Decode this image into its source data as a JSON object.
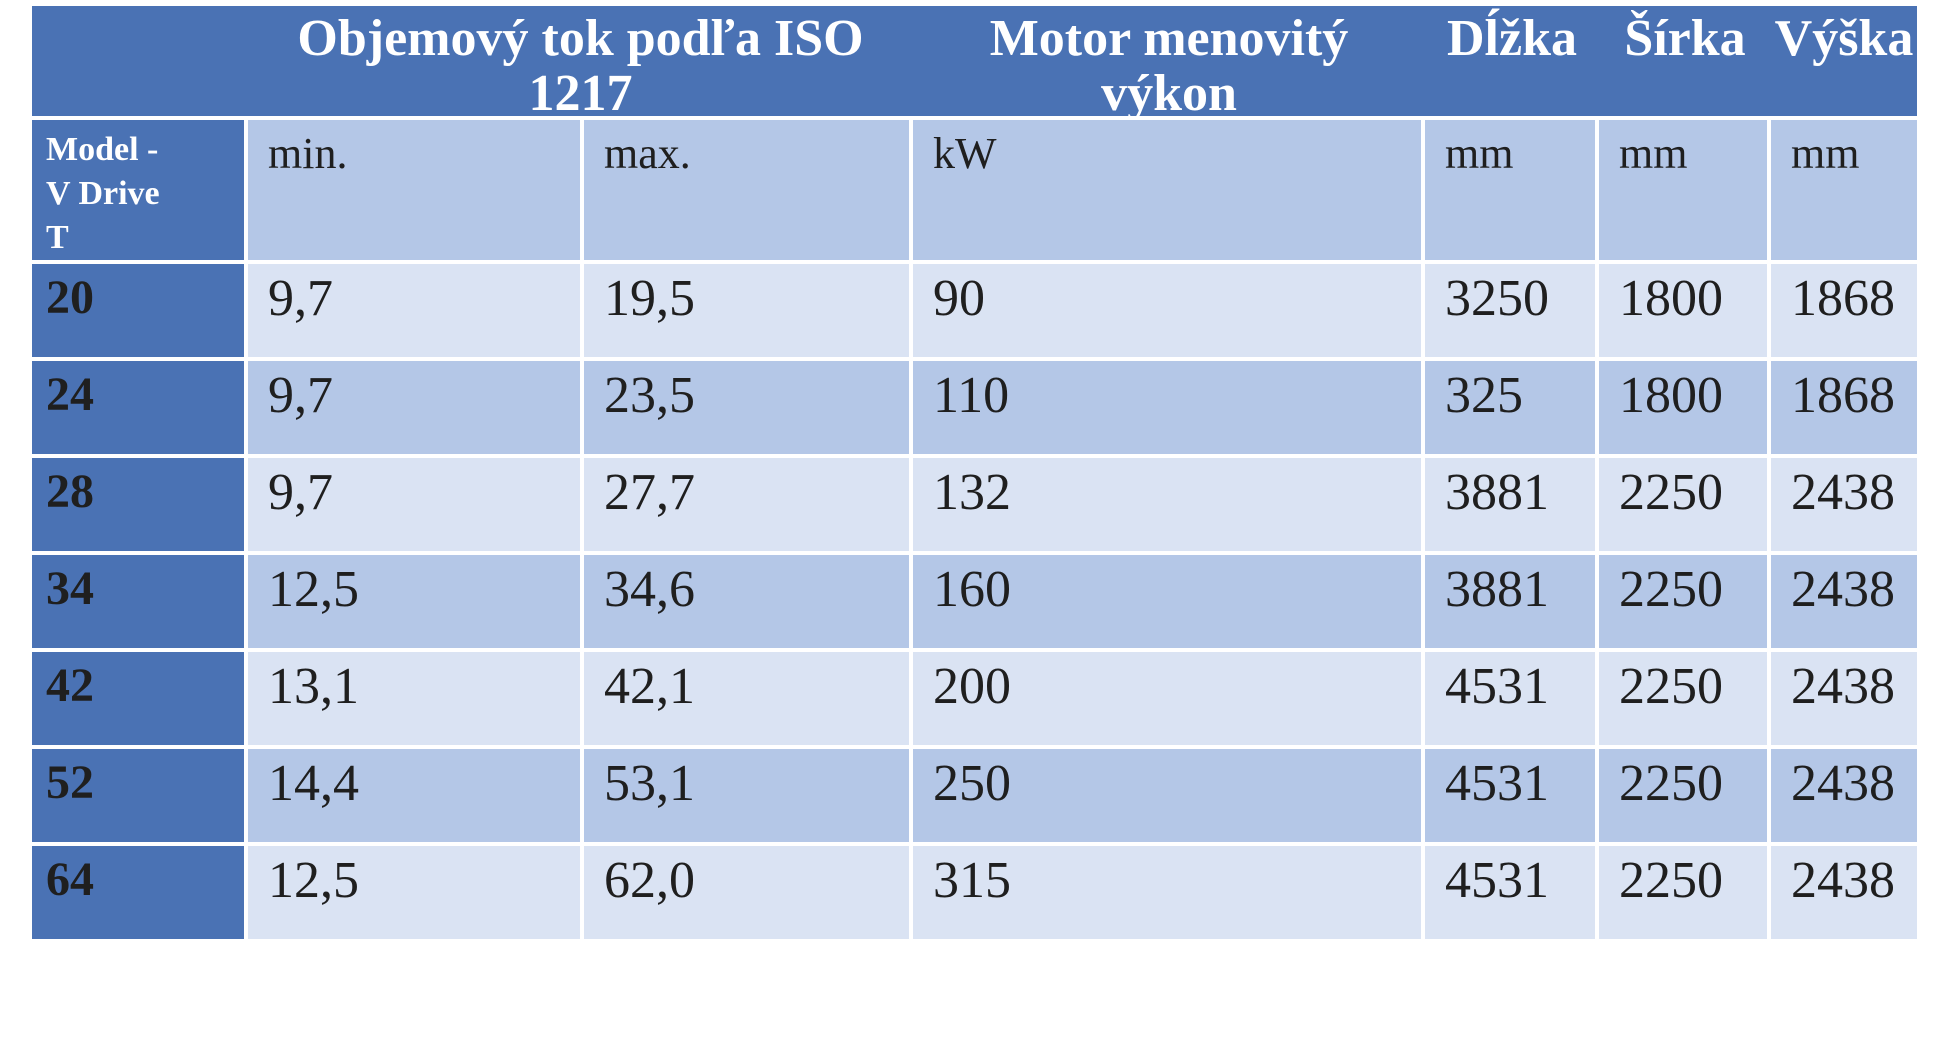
{
  "table": {
    "colors": {
      "header_bg": "#4a72b4",
      "band_light": "#dae3f3",
      "band_medium": "#b4c7e7",
      "header_text": "#ffffff",
      "body_text": "#1f1f1f",
      "page_bg": "#ffffff"
    },
    "header1": {
      "flow_title": "Objemový tok podľa ISO\n1217",
      "motor_title": "Motor menovitý\nvýkon",
      "length_title": "Dĺžka",
      "width_title": "Šírka",
      "height_title": "Výška"
    },
    "header2": {
      "model": "Model -\nV Drive\nT",
      "min": "min.",
      "max": "max.",
      "kw": "kW",
      "mm_length": "mm",
      "mm_width": "mm",
      "mm_height": "mm"
    },
    "rows": [
      {
        "model": "20",
        "values": [
          "9,7",
          "19,5",
          "90",
          "3250",
          "1800",
          "1868"
        ]
      },
      {
        "model": "24",
        "values": [
          "9,7",
          "23,5",
          "110",
          "325",
          "1800",
          "1868"
        ]
      },
      {
        "model": "28",
        "values": [
          "9,7",
          "27,7",
          "132",
          "3881",
          "2250",
          "2438"
        ]
      },
      {
        "model": "34",
        "values": [
          "12,5",
          "34,6",
          "160",
          "3881",
          "2250",
          "2438"
        ]
      },
      {
        "model": "42",
        "values": [
          "13,1",
          "42,1",
          "200",
          "4531",
          "2250",
          "2438"
        ]
      },
      {
        "model": "52",
        "values": [
          "14,4",
          "53,1",
          "250",
          "4531",
          "2250",
          "2438"
        ]
      },
      {
        "model": "64",
        "values": [
          "12,5",
          "62,0",
          "315",
          "4531",
          "2250",
          "2438"
        ]
      }
    ]
  }
}
